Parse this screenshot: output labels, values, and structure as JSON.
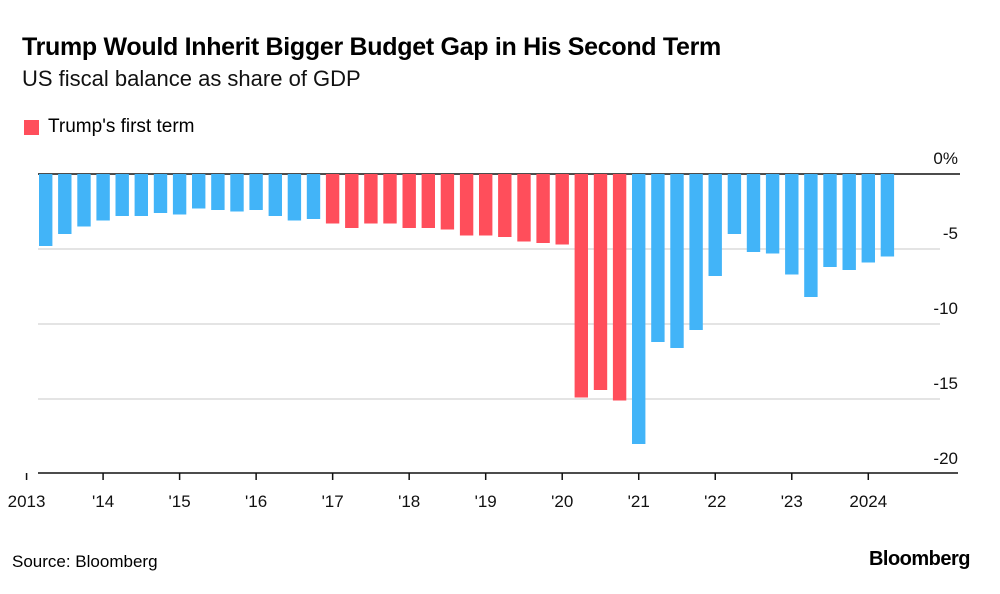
{
  "chart_data": {
    "type": "bar",
    "title": "Trump Would Inherit Bigger Budget Gap in His Second Term",
    "subtitle": "US fiscal balance as share of GDP",
    "xlabel": "",
    "ylabel": "",
    "ylim": [
      -20,
      0
    ],
    "y_unit": "%",
    "yticks": [
      {
        "value": 0,
        "label": "0%"
      },
      {
        "value": -5,
        "label": "-5"
      },
      {
        "value": -10,
        "label": "-10"
      },
      {
        "value": -15,
        "label": "-15"
      },
      {
        "value": -20,
        "label": "-20"
      }
    ],
    "xticks": [
      {
        "year": 2013,
        "label": "2013"
      },
      {
        "year": 2014,
        "label": "'14"
      },
      {
        "year": 2015,
        "label": "'15"
      },
      {
        "year": 2016,
        "label": "'16"
      },
      {
        "year": 2017,
        "label": "'17"
      },
      {
        "year": 2018,
        "label": "'18"
      },
      {
        "year": 2019,
        "label": "'19"
      },
      {
        "year": 2020,
        "label": "'20"
      },
      {
        "year": 2021,
        "label": "'21"
      },
      {
        "year": 2022,
        "label": "'22"
      },
      {
        "year": 2023,
        "label": "'23"
      },
      {
        "year": 2024,
        "label": "2024"
      }
    ],
    "grid": true,
    "legend": {
      "position": "top-left",
      "entries": [
        {
          "name": "Trump's first term",
          "color": "#ff4e5b"
        }
      ]
    },
    "colors": {
      "default": "#42b4f8",
      "trump_first_term": "#ff4e5b"
    },
    "categories": [
      "2013Q2",
      "2013Q3",
      "2013Q4",
      "2014Q1",
      "2014Q2",
      "2014Q3",
      "2014Q4",
      "2015Q1",
      "2015Q2",
      "2015Q3",
      "2015Q4",
      "2016Q1",
      "2016Q2",
      "2016Q3",
      "2016Q4",
      "2017Q1",
      "2017Q2",
      "2017Q3",
      "2017Q4",
      "2018Q1",
      "2018Q2",
      "2018Q3",
      "2018Q4",
      "2019Q1",
      "2019Q2",
      "2019Q3",
      "2019Q4",
      "2020Q1",
      "2020Q2",
      "2020Q3",
      "2020Q4",
      "2021Q1",
      "2021Q2",
      "2021Q3",
      "2021Q4",
      "2022Q1",
      "2022Q2",
      "2022Q3",
      "2022Q4",
      "2023Q1",
      "2023Q2",
      "2023Q3",
      "2023Q4",
      "2024Q1",
      "2024Q2"
    ],
    "values": [
      -4.8,
      -4.0,
      -3.5,
      -3.1,
      -2.8,
      -2.8,
      -2.6,
      -2.7,
      -2.3,
      -2.4,
      -2.5,
      -2.4,
      -2.8,
      -3.1,
      -3.0,
      -3.3,
      -3.6,
      -3.3,
      -3.3,
      -3.6,
      -3.6,
      -3.7,
      -4.1,
      -4.1,
      -4.2,
      -4.5,
      -4.6,
      -4.7,
      -14.9,
      -14.4,
      -15.1,
      -18.0,
      -11.2,
      -11.6,
      -10.4,
      -6.8,
      -4.0,
      -5.2,
      -5.3,
      -6.7,
      -8.2,
      -6.2,
      -6.4,
      -5.9,
      -5.5
    ],
    "trump_first_term": [
      false,
      false,
      false,
      false,
      false,
      false,
      false,
      false,
      false,
      false,
      false,
      false,
      false,
      false,
      false,
      true,
      true,
      true,
      true,
      true,
      true,
      true,
      true,
      true,
      true,
      true,
      true,
      true,
      true,
      true,
      true,
      false,
      false,
      false,
      false,
      false,
      false,
      false,
      false,
      false,
      false,
      false,
      false,
      false,
      false
    ]
  },
  "footer": {
    "source": "Source: Bloomberg",
    "brand": "Bloomberg"
  }
}
